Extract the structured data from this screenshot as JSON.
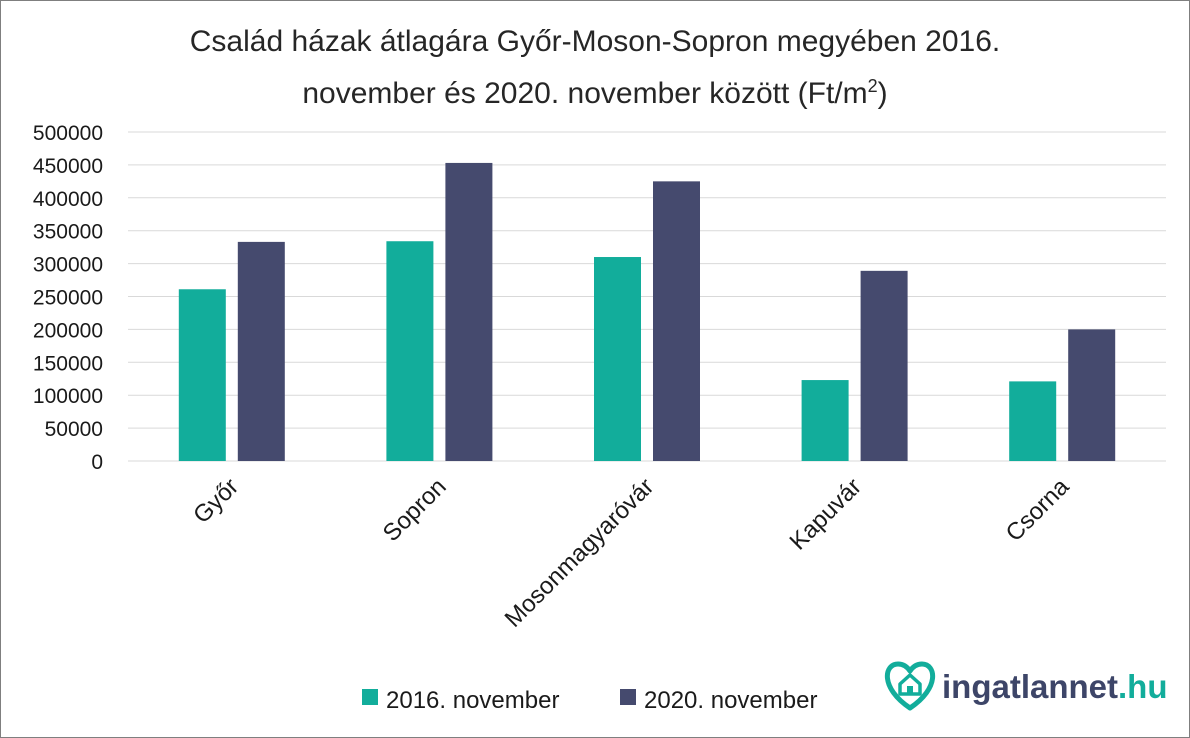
{
  "chart_data": {
    "type": "bar",
    "title_line1": "Család házak átlagára Győr-Moson-Sopron megyében 2016.",
    "title_line2_main": "november és 2020. november között (Ft/m",
    "title_sup": "2",
    "title_close": ")",
    "categories": [
      "Győr",
      "Sopron",
      "Mosonmagyaróvár",
      "Kapuvár",
      "Csorna"
    ],
    "series": [
      {
        "name": "2016. november",
        "color": "#12ad9b",
        "values": [
          261000,
          334000,
          310000,
          123000,
          121000
        ]
      },
      {
        "name": "2020. november",
        "color": "#454a6e",
        "values": [
          333000,
          453000,
          425000,
          289000,
          200000
        ]
      }
    ],
    "ylim": [
      0,
      500000
    ],
    "yticks": [
      0,
      50000,
      100000,
      150000,
      200000,
      250000,
      300000,
      350000,
      400000,
      450000,
      500000
    ],
    "grid": true,
    "legend_position": "bottom"
  },
  "brand": {
    "text_main": "ingatlannet",
    "text_suffix": ".hu",
    "icon": "heart-house-icon",
    "color": "#12ad9b",
    "text_color": "#3d4568"
  }
}
